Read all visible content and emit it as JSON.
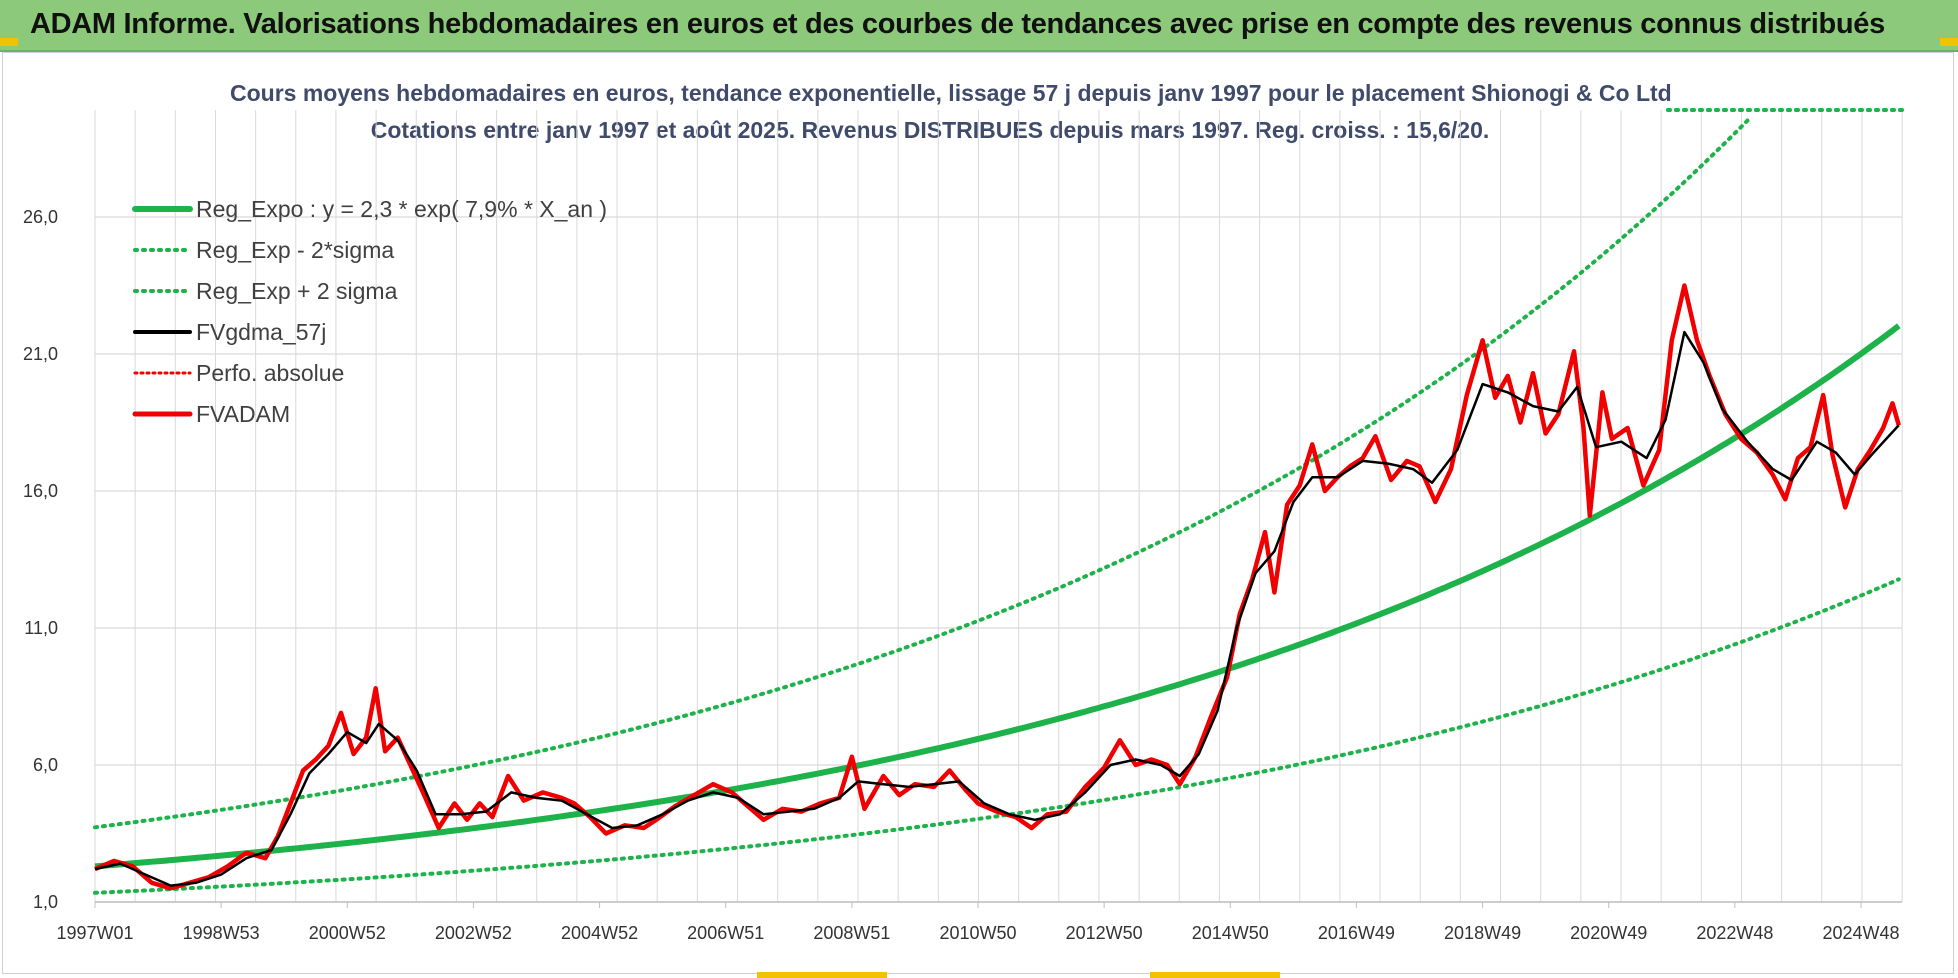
{
  "header": {
    "title": "ADAM Informe. Valorisations hebdomadaires en euros et des courbes de tendances avec prise en compte des revenus connus distribués"
  },
  "colors": {
    "header_bg": "#8cc97a",
    "green": "#1db24a",
    "red": "#f00000",
    "black": "#000000",
    "grid": "#d9d9d9"
  },
  "chart_data": {
    "type": "line",
    "title_line1": "Cours moyens hebdomadaires en euros, tendance exponentielle, lissage 57 j depuis janv 1997 pour le placement Shionogi & Co Ltd",
    "title_line2": "Cotations entre janv 1997 et août 2025.  Revenus DISTRIBUES depuis mars 1997. Reg. croiss. : 15,6/20.",
    "ylim": [
      1.0,
      28.0
    ],
    "yticks": [
      "1,0",
      "6,0",
      "11,0",
      "16,0",
      "21,0",
      "26,0"
    ],
    "ytick_values": [
      1,
      6,
      11,
      16,
      21,
      26
    ],
    "xlim": [
      1997.0,
      2025.65
    ],
    "xticks": [
      "1997W01",
      "1998W53",
      "2000W52",
      "2002W52",
      "2004W52",
      "2006W51",
      "2008W51",
      "2010W50",
      "2012W50",
      "2014W50",
      "2016W49",
      "2018W49",
      "2020W49",
      "2022W48",
      "2024W48"
    ],
    "xtick_values": [
      1997.0,
      1999.0,
      2001.0,
      2003.0,
      2005.0,
      2007.0,
      2009.0,
      2011.0,
      2013.0,
      2015.0,
      2017.0,
      2019.0,
      2021.0,
      2023.0,
      2025.0
    ],
    "grid": true,
    "legend_position": "top-left",
    "legend": [
      {
        "label": "Reg_Expo : y = 2,3 * exp( 7,9% *  X_an )",
        "style": "solid-green"
      },
      {
        "label": "Reg_Exp - 2*sigma",
        "style": "dotted-green"
      },
      {
        "label": "Reg_Exp + 2 sigma",
        "style": "dotted-green"
      },
      {
        "label": "FVgdma_57j",
        "style": "solid-black"
      },
      {
        "label": "Perfo. absolue",
        "style": "dotted-red"
      },
      {
        "label": "FVADAM",
        "style": "solid-red"
      }
    ],
    "trend": {
      "a": 2.3,
      "rate": 0.079,
      "x0": 1997.0,
      "lower_factor": 0.58,
      "upper_factor": 1.62
    },
    "series": [
      {
        "name": "FVADAM",
        "points": [
          [
            1997.0,
            2.2
          ],
          [
            1997.3,
            2.5
          ],
          [
            1997.6,
            2.3
          ],
          [
            1997.9,
            1.7
          ],
          [
            1998.2,
            1.5
          ],
          [
            1998.5,
            1.7
          ],
          [
            1998.8,
            1.9
          ],
          [
            1999.1,
            2.3
          ],
          [
            1999.4,
            2.8
          ],
          [
            1999.7,
            2.6
          ],
          [
            1999.9,
            3.4
          ],
          [
            2000.1,
            4.6
          ],
          [
            2000.3,
            5.8
          ],
          [
            2000.5,
            6.2
          ],
          [
            2000.7,
            6.7
          ],
          [
            2000.9,
            7.9
          ],
          [
            2001.1,
            6.4
          ],
          [
            2001.3,
            7.0
          ],
          [
            2001.45,
            8.8
          ],
          [
            2001.6,
            6.5
          ],
          [
            2001.8,
            7.0
          ],
          [
            2002.0,
            6.0
          ],
          [
            2002.2,
            5.0
          ],
          [
            2002.45,
            3.7
          ],
          [
            2002.7,
            4.6
          ],
          [
            2002.9,
            4.0
          ],
          [
            2003.1,
            4.6
          ],
          [
            2003.3,
            4.1
          ],
          [
            2003.55,
            5.6
          ],
          [
            2003.8,
            4.7
          ],
          [
            2004.1,
            5.0
          ],
          [
            2004.4,
            4.8
          ],
          [
            2004.6,
            4.6
          ],
          [
            2004.85,
            4.1
          ],
          [
            2005.1,
            3.5
          ],
          [
            2005.4,
            3.8
          ],
          [
            2005.7,
            3.7
          ],
          [
            2005.9,
            4.0
          ],
          [
            2006.2,
            4.5
          ],
          [
            2006.5,
            4.9
          ],
          [
            2006.8,
            5.3
          ],
          [
            2007.1,
            5.0
          ],
          [
            2007.3,
            4.6
          ],
          [
            2007.6,
            4.0
          ],
          [
            2007.9,
            4.4
          ],
          [
            2008.2,
            4.3
          ],
          [
            2008.5,
            4.6
          ],
          [
            2008.8,
            4.8
          ],
          [
            2009.0,
            6.3
          ],
          [
            2009.2,
            4.4
          ],
          [
            2009.5,
            5.6
          ],
          [
            2009.75,
            4.9
          ],
          [
            2010.0,
            5.3
          ],
          [
            2010.3,
            5.2
          ],
          [
            2010.55,
            5.8
          ],
          [
            2010.8,
            5.1
          ],
          [
            2011.0,
            4.6
          ],
          [
            2011.3,
            4.3
          ],
          [
            2011.6,
            4.1
          ],
          [
            2011.85,
            3.7
          ],
          [
            2012.1,
            4.2
          ],
          [
            2012.4,
            4.3
          ],
          [
            2012.7,
            5.2
          ],
          [
            2013.0,
            5.9
          ],
          [
            2013.25,
            6.9
          ],
          [
            2013.5,
            6.0
          ],
          [
            2013.75,
            6.2
          ],
          [
            2014.0,
            6.0
          ],
          [
            2014.2,
            5.3
          ],
          [
            2014.45,
            6.3
          ],
          [
            2014.7,
            7.8
          ],
          [
            2014.95,
            9.2
          ],
          [
            2015.15,
            11.5
          ],
          [
            2015.35,
            12.8
          ],
          [
            2015.55,
            14.5
          ],
          [
            2015.7,
            12.3
          ],
          [
            2015.9,
            15.5
          ],
          [
            2016.1,
            16.2
          ],
          [
            2016.3,
            17.7
          ],
          [
            2016.5,
            16.0
          ],
          [
            2016.7,
            16.5
          ],
          [
            2016.9,
            16.9
          ],
          [
            2017.1,
            17.2
          ],
          [
            2017.3,
            18.0
          ],
          [
            2017.55,
            16.4
          ],
          [
            2017.8,
            17.1
          ],
          [
            2018.0,
            16.9
          ],
          [
            2018.25,
            15.6
          ],
          [
            2018.5,
            16.8
          ],
          [
            2018.75,
            19.5
          ],
          [
            2019.0,
            21.5
          ],
          [
            2019.2,
            19.4
          ],
          [
            2019.4,
            20.2
          ],
          [
            2019.6,
            18.5
          ],
          [
            2019.8,
            20.3
          ],
          [
            2020.0,
            18.1
          ],
          [
            2020.2,
            18.8
          ],
          [
            2020.45,
            21.1
          ],
          [
            2020.6,
            18.3
          ],
          [
            2020.7,
            15.1
          ],
          [
            2020.9,
            19.6
          ],
          [
            2021.05,
            17.9
          ],
          [
            2021.3,
            18.3
          ],
          [
            2021.55,
            16.2
          ],
          [
            2021.8,
            17.5
          ],
          [
            2022.0,
            21.5
          ],
          [
            2022.2,
            23.5
          ],
          [
            2022.4,
            21.5
          ],
          [
            2022.6,
            20.2
          ],
          [
            2022.85,
            18.8
          ],
          [
            2023.1,
            17.9
          ],
          [
            2023.35,
            17.4
          ],
          [
            2023.6,
            16.6
          ],
          [
            2023.8,
            15.7
          ],
          [
            2024.0,
            17.2
          ],
          [
            2024.2,
            17.6
          ],
          [
            2024.4,
            19.5
          ],
          [
            2024.55,
            17.3
          ],
          [
            2024.75,
            15.4
          ],
          [
            2024.95,
            16.8
          ],
          [
            2025.15,
            17.5
          ],
          [
            2025.35,
            18.3
          ],
          [
            2025.5,
            19.2
          ],
          [
            2025.6,
            18.4
          ]
        ]
      },
      {
        "name": "FVgdma_57j",
        "points": [
          [
            1997.0,
            2.2
          ],
          [
            1997.4,
            2.4
          ],
          [
            1997.8,
            2.0
          ],
          [
            1998.2,
            1.6
          ],
          [
            1998.6,
            1.7
          ],
          [
            1999.0,
            2.0
          ],
          [
            1999.4,
            2.6
          ],
          [
            1999.8,
            2.9
          ],
          [
            2000.1,
            4.2
          ],
          [
            2000.4,
            5.7
          ],
          [
            2000.7,
            6.4
          ],
          [
            2001.0,
            7.2
          ],
          [
            2001.3,
            6.8
          ],
          [
            2001.5,
            7.5
          ],
          [
            2001.8,
            6.9
          ],
          [
            2002.1,
            5.8
          ],
          [
            2002.4,
            4.2
          ],
          [
            2002.8,
            4.2
          ],
          [
            2003.2,
            4.3
          ],
          [
            2003.6,
            5.0
          ],
          [
            2004.0,
            4.8
          ],
          [
            2004.4,
            4.7
          ],
          [
            2004.8,
            4.2
          ],
          [
            2005.2,
            3.7
          ],
          [
            2005.6,
            3.8
          ],
          [
            2006.0,
            4.2
          ],
          [
            2006.4,
            4.7
          ],
          [
            2006.8,
            5.0
          ],
          [
            2007.2,
            4.8
          ],
          [
            2007.6,
            4.2
          ],
          [
            2008.0,
            4.3
          ],
          [
            2008.4,
            4.4
          ],
          [
            2008.8,
            4.8
          ],
          [
            2009.1,
            5.4
          ],
          [
            2009.5,
            5.3
          ],
          [
            2009.9,
            5.2
          ],
          [
            2010.3,
            5.3
          ],
          [
            2010.7,
            5.4
          ],
          [
            2011.1,
            4.6
          ],
          [
            2011.5,
            4.2
          ],
          [
            2011.9,
            4.0
          ],
          [
            2012.3,
            4.2
          ],
          [
            2012.7,
            5.0
          ],
          [
            2013.1,
            6.0
          ],
          [
            2013.5,
            6.2
          ],
          [
            2013.9,
            6.0
          ],
          [
            2014.2,
            5.6
          ],
          [
            2014.5,
            6.4
          ],
          [
            2014.8,
            8.0
          ],
          [
            2015.1,
            11.0
          ],
          [
            2015.4,
            13.0
          ],
          [
            2015.7,
            13.8
          ],
          [
            2016.0,
            15.6
          ],
          [
            2016.3,
            16.5
          ],
          [
            2016.7,
            16.5
          ],
          [
            2017.1,
            17.1
          ],
          [
            2017.5,
            17.0
          ],
          [
            2017.9,
            16.8
          ],
          [
            2018.2,
            16.3
          ],
          [
            2018.6,
            17.5
          ],
          [
            2019.0,
            19.9
          ],
          [
            2019.4,
            19.6
          ],
          [
            2019.8,
            19.1
          ],
          [
            2020.2,
            18.9
          ],
          [
            2020.5,
            19.8
          ],
          [
            2020.8,
            17.6
          ],
          [
            2021.2,
            17.8
          ],
          [
            2021.6,
            17.2
          ],
          [
            2021.9,
            18.6
          ],
          [
            2022.2,
            21.8
          ],
          [
            2022.5,
            20.7
          ],
          [
            2022.8,
            19.0
          ],
          [
            2023.2,
            17.8
          ],
          [
            2023.6,
            16.8
          ],
          [
            2023.9,
            16.4
          ],
          [
            2024.3,
            17.8
          ],
          [
            2024.6,
            17.4
          ],
          [
            2024.9,
            16.6
          ],
          [
            2025.2,
            17.4
          ],
          [
            2025.6,
            18.4
          ]
        ]
      }
    ]
  }
}
